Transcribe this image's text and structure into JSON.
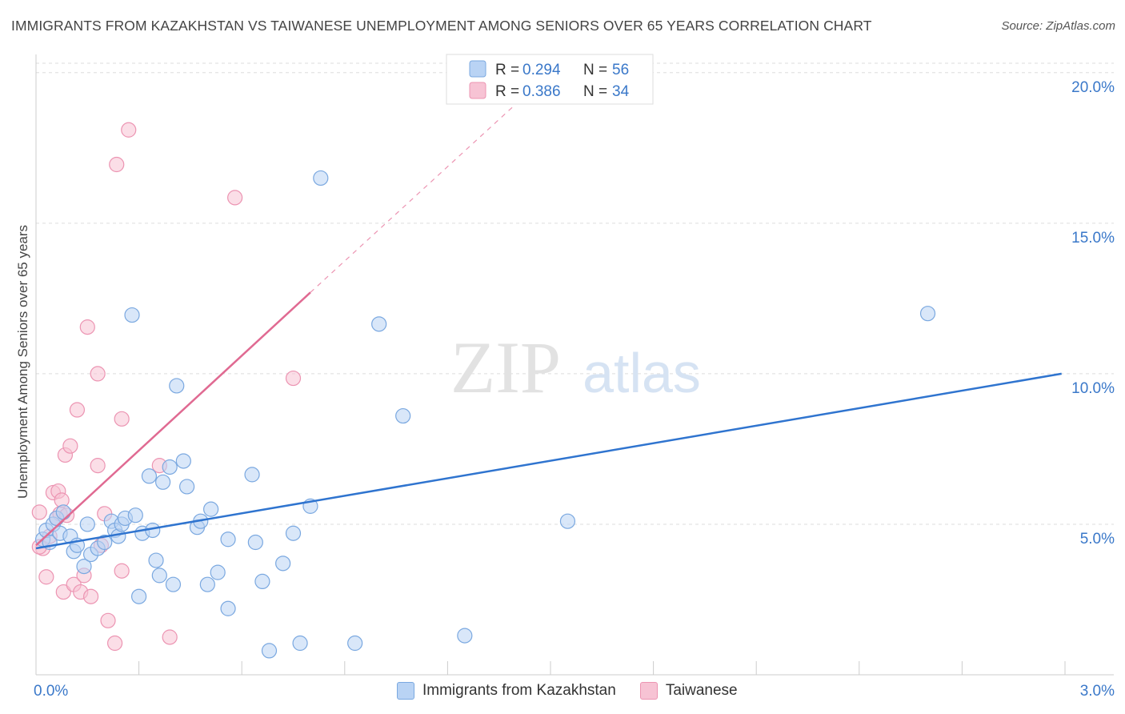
{
  "header": {
    "title": "IMMIGRANTS FROM KAZAKHSTAN VS TAIWANESE UNEMPLOYMENT AMONG SENIORS OVER 65 YEARS CORRELATION CHART",
    "source": "Source: ZipAtlas.com"
  },
  "watermark": {
    "zip": "ZIP",
    "atlas": "atlas"
  },
  "colors": {
    "blue_fill": "#b9d3f4",
    "blue_stroke": "#7aa8e0",
    "blue_line": "#2f74cf",
    "pink_fill": "#f7c3d4",
    "pink_stroke": "#ec94b2",
    "pink_line": "#e06a92",
    "value_text": "#3a78c9",
    "grid": "#dddddd"
  },
  "chart_data": {
    "type": "scatter",
    "title": "IMMIGRANTS FROM KAZAKHSTAN VS TAIWANESE UNEMPLOYMENT AMONG SENIORS OVER 65 YEARS CORRELATION CHART",
    "xlabel": "",
    "ylabel": "Unemployment Among Seniors over 65 years",
    "xlim": [
      0,
      3.0
    ],
    "ylim": [
      0,
      20.5
    ],
    "x_ticks": [
      "0.0%",
      "3.0%"
    ],
    "y_ticks": [
      {
        "value": 5,
        "label": "5.0%"
      },
      {
        "value": 10,
        "label": "10.0%"
      },
      {
        "value": 15,
        "label": "15.0%"
      },
      {
        "value": 20,
        "label": "20.0%"
      }
    ],
    "legend": {
      "position": "top-center",
      "entries": [
        {
          "r_label": "R =",
          "r_value": "0.294",
          "n_label": "N =",
          "n_value": "56"
        },
        {
          "r_label": "R =",
          "r_value": "0.386",
          "n_label": "N =",
          "n_value": "34"
        }
      ]
    },
    "series": [
      {
        "name": "Immigrants from Kazakhstan",
        "color": "blue",
        "trend": {
          "x0": 0.0,
          "y0": 4.2,
          "x1": 2.99,
          "y1": 10.0
        },
        "points": [
          [
            0.02,
            4.5
          ],
          [
            0.03,
            4.8
          ],
          [
            0.04,
            4.4
          ],
          [
            0.05,
            5.0
          ],
          [
            0.06,
            5.2
          ],
          [
            0.07,
            4.7
          ],
          [
            0.08,
            5.4
          ],
          [
            0.1,
            4.6
          ],
          [
            0.11,
            4.1
          ],
          [
            0.12,
            4.3
          ],
          [
            0.14,
            3.6
          ],
          [
            0.15,
            5.0
          ],
          [
            0.16,
            4.0
          ],
          [
            0.18,
            4.2
          ],
          [
            0.2,
            4.4
          ],
          [
            0.22,
            5.1
          ],
          [
            0.23,
            4.8
          ],
          [
            0.24,
            4.6
          ],
          [
            0.25,
            5.0
          ],
          [
            0.26,
            5.2
          ],
          [
            0.28,
            11.95
          ],
          [
            0.29,
            5.3
          ],
          [
            0.3,
            2.6
          ],
          [
            0.31,
            4.7
          ],
          [
            0.33,
            6.6
          ],
          [
            0.34,
            4.8
          ],
          [
            0.35,
            3.8
          ],
          [
            0.36,
            3.3
          ],
          [
            0.37,
            6.4
          ],
          [
            0.39,
            6.9
          ],
          [
            0.4,
            3.0
          ],
          [
            0.41,
            9.6
          ],
          [
            0.43,
            7.1
          ],
          [
            0.44,
            6.25
          ],
          [
            0.47,
            4.9
          ],
          [
            0.48,
            5.1
          ],
          [
            0.5,
            3.0
          ],
          [
            0.51,
            5.5
          ],
          [
            0.53,
            3.4
          ],
          [
            0.56,
            2.2
          ],
          [
            0.56,
            4.5
          ],
          [
            0.63,
            6.65
          ],
          [
            0.64,
            4.4
          ],
          [
            0.66,
            3.1
          ],
          [
            0.68,
            0.8
          ],
          [
            0.72,
            3.7
          ],
          [
            0.75,
            4.7
          ],
          [
            0.77,
            1.05
          ],
          [
            0.8,
            5.6
          ],
          [
            0.83,
            16.5
          ],
          [
            0.93,
            1.05
          ],
          [
            1.0,
            11.65
          ],
          [
            1.07,
            8.6
          ],
          [
            1.25,
            1.3
          ],
          [
            1.55,
            5.1
          ],
          [
            2.6,
            12.0
          ]
        ]
      },
      {
        "name": "Taiwanese",
        "color": "pink",
        "trend": {
          "x0": 0.0,
          "y0": 4.3,
          "x1": 0.8,
          "y1": 12.7,
          "dash_to_x": 1.47,
          "dash_to_y": 19.7
        },
        "points": [
          [
            0.01,
            5.4
          ],
          [
            0.02,
            4.2
          ],
          [
            0.03,
            3.25
          ],
          [
            0.04,
            4.6
          ],
          [
            0.05,
            6.05
          ],
          [
            0.06,
            5.2
          ],
          [
            0.065,
            6.1
          ],
          [
            0.07,
            5.35
          ],
          [
            0.075,
            5.8
          ],
          [
            0.08,
            2.75
          ],
          [
            0.085,
            7.3
          ],
          [
            0.09,
            5.3
          ],
          [
            0.1,
            7.6
          ],
          [
            0.11,
            3.0
          ],
          [
            0.12,
            8.8
          ],
          [
            0.13,
            2.75
          ],
          [
            0.14,
            3.3
          ],
          [
            0.15,
            11.55
          ],
          [
            0.16,
            2.6
          ],
          [
            0.18,
            6.95
          ],
          [
            0.18,
            10.0
          ],
          [
            0.19,
            4.3
          ],
          [
            0.2,
            5.35
          ],
          [
            0.21,
            1.8
          ],
          [
            0.23,
            1.05
          ],
          [
            0.235,
            16.95
          ],
          [
            0.25,
            8.5
          ],
          [
            0.25,
            3.45
          ],
          [
            0.27,
            18.1
          ],
          [
            0.36,
            6.95
          ],
          [
            0.39,
            1.25
          ],
          [
            0.58,
            15.85
          ],
          [
            0.75,
            9.85
          ],
          [
            0.01,
            4.25
          ]
        ]
      }
    ]
  }
}
